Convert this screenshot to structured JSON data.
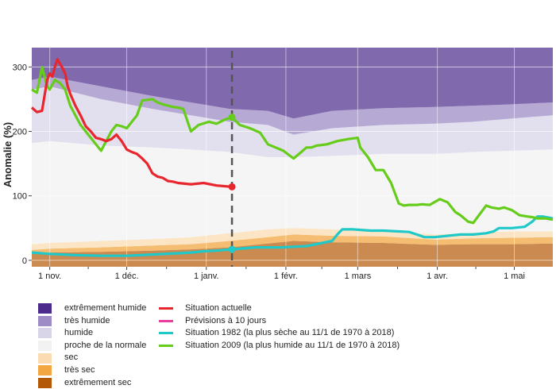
{
  "chart_data": {
    "type": "area",
    "title": "",
    "ylabel": "Anomalie (%)",
    "xlabel": "",
    "x_ticks": [
      {
        "label": "1 nov.",
        "day": 0
      },
      {
        "label": "1 déc.",
        "day": 30
      },
      {
        "label": "1 janv.",
        "day": 61
      },
      {
        "label": "1 févr.",
        "day": 92
      },
      {
        "label": "1 mars",
        "day": 120
      },
      {
        "label": "1 avr.",
        "day": 151
      },
      {
        "label": "1 mai",
        "day": 181
      }
    ],
    "y_ticks": [
      0,
      100,
      200,
      300
    ],
    "xlim_day": [
      -7,
      196
    ],
    "ylim": [
      -10,
      330
    ],
    "current_date_day": 71,
    "bands": {
      "x": [
        -7,
        0,
        20,
        40,
        55,
        70,
        85,
        95,
        110,
        130,
        150,
        165,
        180,
        196
      ],
      "b1": [
        10,
        12,
        13,
        15,
        17,
        20,
        26,
        30,
        28,
        27,
        24,
        25,
        25,
        26
      ],
      "b2": [
        16,
        18,
        20,
        23,
        25,
        30,
        36,
        40,
        38,
        37,
        32,
        34,
        35,
        36
      ],
      "b3": [
        25,
        27,
        30,
        33,
        36,
        42,
        48,
        50,
        48,
        46,
        40,
        43,
        45,
        45
      ],
      "b4": [
        182,
        185,
        178,
        175,
        172,
        168,
        160,
        160,
        162,
        165,
        165,
        168,
        170,
        172
      ],
      "b5": [
        265,
        270,
        250,
        235,
        225,
        215,
        210,
        195,
        205,
        210,
        212,
        215,
        220,
        225
      ],
      "b6": [
        280,
        285,
        270,
        255,
        245,
        235,
        232,
        220,
        232,
        236,
        238,
        240,
        242,
        245
      ],
      "top": 330
    },
    "series": [
      {
        "name": "Situation actuelle",
        "color": "#e8262d",
        "x": [
          -7,
          -5,
          -3,
          -1,
          0,
          1,
          2,
          3,
          4,
          5,
          6,
          7,
          8,
          10,
          12,
          14,
          16,
          18,
          20,
          22,
          24,
          26,
          28,
          30,
          32,
          34,
          36,
          38,
          40,
          42,
          44,
          46,
          48,
          50,
          55,
          60,
          65,
          68,
          71
        ],
        "y": [
          237,
          230,
          232,
          280,
          290,
          285,
          300,
          312,
          305,
          298,
          290,
          270,
          258,
          240,
          225,
          208,
          200,
          190,
          188,
          185,
          188,
          195,
          185,
          172,
          168,
          165,
          158,
          150,
          135,
          130,
          128,
          123,
          122,
          120,
          118,
          120,
          116,
          115,
          114
        ]
      },
      {
        "name": "Prévisions à 10 jours",
        "color": "#e83e9e",
        "x": [],
        "y": []
      },
      {
        "name": "Situation 1982 (la plus sèche au 11/1 de 1970 à 2018)",
        "color": "#1fc9c9",
        "x": [
          -7,
          0,
          10,
          20,
          30,
          40,
          50,
          55,
          60,
          65,
          71,
          80,
          90,
          100,
          110,
          112,
          114,
          118,
          125,
          130,
          140,
          143,
          146,
          150,
          160,
          165,
          170,
          173,
          175,
          180,
          185,
          188,
          190,
          192,
          196
        ],
        "y": [
          12,
          10,
          8,
          7,
          7,
          9,
          11,
          12,
          14,
          15,
          17,
          20,
          20,
          22,
          30,
          40,
          48,
          48,
          46,
          46,
          44,
          40,
          36,
          36,
          40,
          40,
          42,
          45,
          50,
          50,
          52,
          60,
          68,
          68,
          65
        ]
      },
      {
        "name": "Situation 2009 (la plus humide au 11/1 de 1970 à 2018)",
        "color": "#66cc1a",
        "x": [
          -7,
          -5,
          -3,
          -1,
          0,
          2,
          4,
          6,
          8,
          10,
          12,
          14,
          16,
          18,
          20,
          22,
          24,
          26,
          28,
          30,
          32,
          34,
          36,
          40,
          42,
          44,
          46,
          48,
          50,
          52,
          55,
          58,
          62,
          65,
          68,
          71,
          74,
          78,
          82,
          85,
          88,
          91,
          95,
          98,
          100,
          102,
          104,
          108,
          112,
          116,
          120,
          121,
          124,
          127,
          130,
          133,
          136,
          138,
          140,
          143,
          145,
          148,
          152,
          155,
          158,
          160,
          163,
          165,
          170,
          172,
          175,
          177,
          180,
          183,
          186,
          188,
          190,
          193,
          196
        ],
        "y": [
          265,
          260,
          300,
          270,
          265,
          280,
          275,
          265,
          240,
          225,
          210,
          200,
          190,
          180,
          170,
          185,
          200,
          210,
          208,
          205,
          215,
          225,
          248,
          250,
          245,
          242,
          240,
          238,
          237,
          235,
          200,
          210,
          215,
          212,
          218,
          222,
          210,
          205,
          198,
          180,
          175,
          170,
          158,
          168,
          175,
          175,
          178,
          180,
          185,
          188,
          190,
          175,
          160,
          140,
          140,
          120,
          88,
          85,
          86,
          86,
          87,
          86,
          95,
          90,
          75,
          70,
          60,
          58,
          85,
          82,
          80,
          82,
          78,
          70,
          68,
          67,
          65,
          65,
          63
        ]
      }
    ],
    "legend": {
      "placement": "bottom-left",
      "bands": [
        {
          "label": "extrêmement humide",
          "color": "#4b2a8c"
        },
        {
          "label": "très humide",
          "color": "#9e8cc6"
        },
        {
          "label": "humide",
          "color": "#d8d5e8"
        },
        {
          "label": "proche de la normale",
          "color": "#f2f2f2"
        },
        {
          "label": "sec",
          "color": "#fbdcb2"
        },
        {
          "label": "très sec",
          "color": "#f2a742"
        },
        {
          "label": "extrêmement sec",
          "color": "#b35806"
        }
      ],
      "lines": [
        {
          "label": "Situation actuelle",
          "color": "#e8262d"
        },
        {
          "label": "Prévisions à 10 jours",
          "color": "#e83e9e"
        },
        {
          "label": "Situation 1982 (la plus sèche au 11/1 de 1970 à 2018)",
          "color": "#1fc9c9"
        },
        {
          "label": "Situation 2009 (la plus humide au 11/1 de 1970 à 2018)",
          "color": "#66cc1a"
        }
      ]
    }
  }
}
